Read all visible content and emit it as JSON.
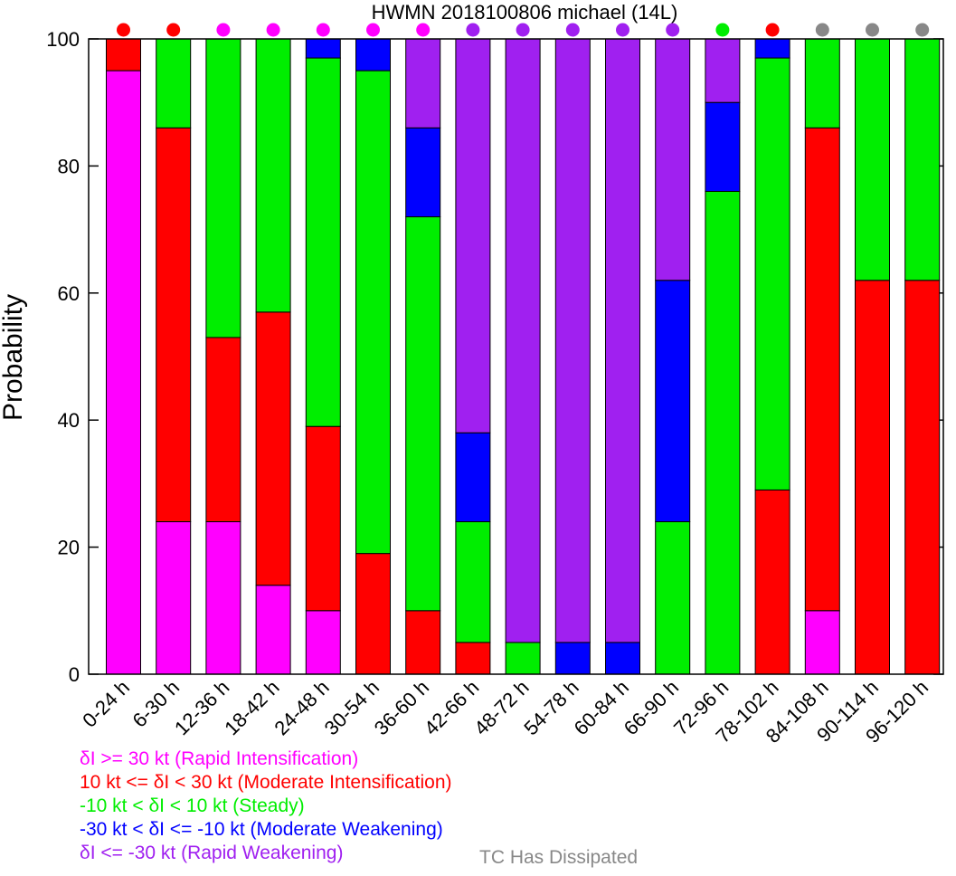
{
  "chart_data": {
    "type": "bar",
    "stacked": true,
    "title": "HWMN 2018100806 michael (14L)",
    "ylabel": "Probability",
    "xlabel": "",
    "ylim": [
      0,
      100
    ],
    "yticks": [
      0,
      20,
      40,
      60,
      80,
      100
    ],
    "categories": [
      "0-24 h",
      "6-30 h",
      "12-36 h",
      "18-42 h",
      "24-48 h",
      "30-54 h",
      "36-60 h",
      "42-66 h",
      "48-72 h",
      "54-78 h",
      "60-84 h",
      "66-90 h",
      "72-96 h",
      "78-102 h",
      "84-108 h",
      "90-114 h",
      "96-120 h"
    ],
    "series": [
      {
        "key": "ri",
        "color": "#ff00ff",
        "values": [
          95,
          24,
          24,
          14,
          10,
          0,
          0,
          0,
          0,
          0,
          0,
          0,
          0,
          0,
          10,
          0,
          0
        ]
      },
      {
        "key": "mi",
        "color": "#ff0000",
        "values": [
          5,
          62,
          29,
          43,
          29,
          19,
          10,
          5,
          0,
          0,
          0,
          0,
          0,
          29,
          76,
          62,
          62
        ]
      },
      {
        "key": "st",
        "color": "#00ee00",
        "values": [
          0,
          14,
          47,
          43,
          58,
          76,
          62,
          19,
          5,
          0,
          0,
          24,
          76,
          68,
          14,
          38,
          38
        ]
      },
      {
        "key": "mw",
        "color": "#0000ff",
        "values": [
          0,
          0,
          0,
          0,
          3,
          5,
          14,
          14,
          0,
          5,
          5,
          38,
          14,
          3,
          0,
          0,
          0
        ]
      },
      {
        "key": "rw",
        "color": "#a020f0",
        "values": [
          0,
          0,
          0,
          0,
          0,
          0,
          14,
          62,
          95,
          95,
          95,
          38,
          10,
          0,
          0,
          0,
          0
        ]
      }
    ],
    "dots": [
      "#ff0000",
      "#ff0000",
      "#ff00ff",
      "#ff00ff",
      "#ff00ff",
      "#ff00ff",
      "#ff00ff",
      "#a020f0",
      "#a020f0",
      "#a020f0",
      "#a020f0",
      "#a020f0",
      "#00ee00",
      "#ff0000",
      "#888888",
      "#888888",
      "#888888"
    ],
    "grid": false
  },
  "legend": [
    {
      "text": "δI >= 30 kt (Rapid Intensification)",
      "color": "#ff00ff"
    },
    {
      "text": "10 kt <= δI < 30 kt (Moderate Intensification)",
      "color": "#ff0000"
    },
    {
      "text": "-10 kt < δI < 10 kt (Steady)",
      "color": "#00ee00"
    },
    {
      "text": "-30 kt < δI <= -10 kt (Moderate Weakening)",
      "color": "#0000ff"
    },
    {
      "text": "δI <= -30 kt (Rapid Weakening)",
      "color": "#a020f0"
    }
  ],
  "dissipated": {
    "text": "TC Has Dissipated",
    "color": "#888888"
  }
}
